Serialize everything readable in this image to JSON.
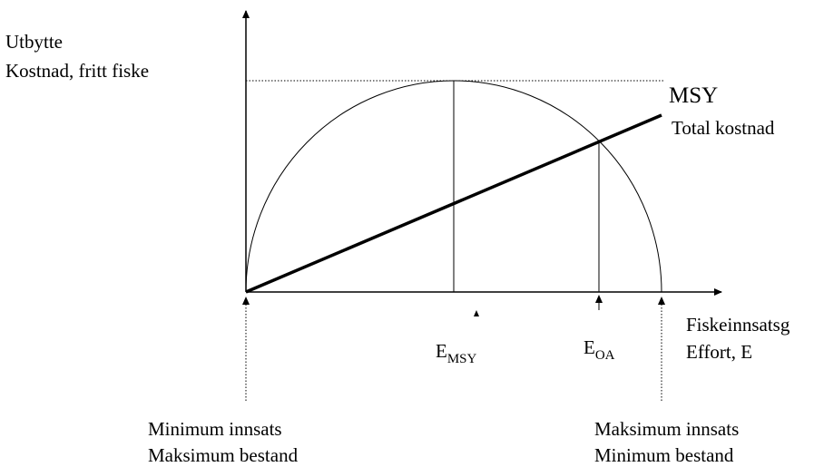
{
  "y_axis": {
    "label_lines": [
      "Utbytte",
      "Kostnad, fritt fiske"
    ]
  },
  "curves": {
    "msy": "MSY",
    "total_cost": "Total kostnad"
  },
  "markers": [
    {
      "base": "E",
      "sub": "MSY"
    },
    {
      "base": "E",
      "sub": "OA"
    }
  ],
  "x_axis": {
    "label_lines": [
      "Fiskeinnsatsg",
      "Effort, E"
    ]
  },
  "extremes": {
    "left": [
      "Minimum innsats",
      "Maksimum bestand"
    ],
    "right": [
      "Maksimum innsats",
      "Minimum bestand"
    ]
  }
}
